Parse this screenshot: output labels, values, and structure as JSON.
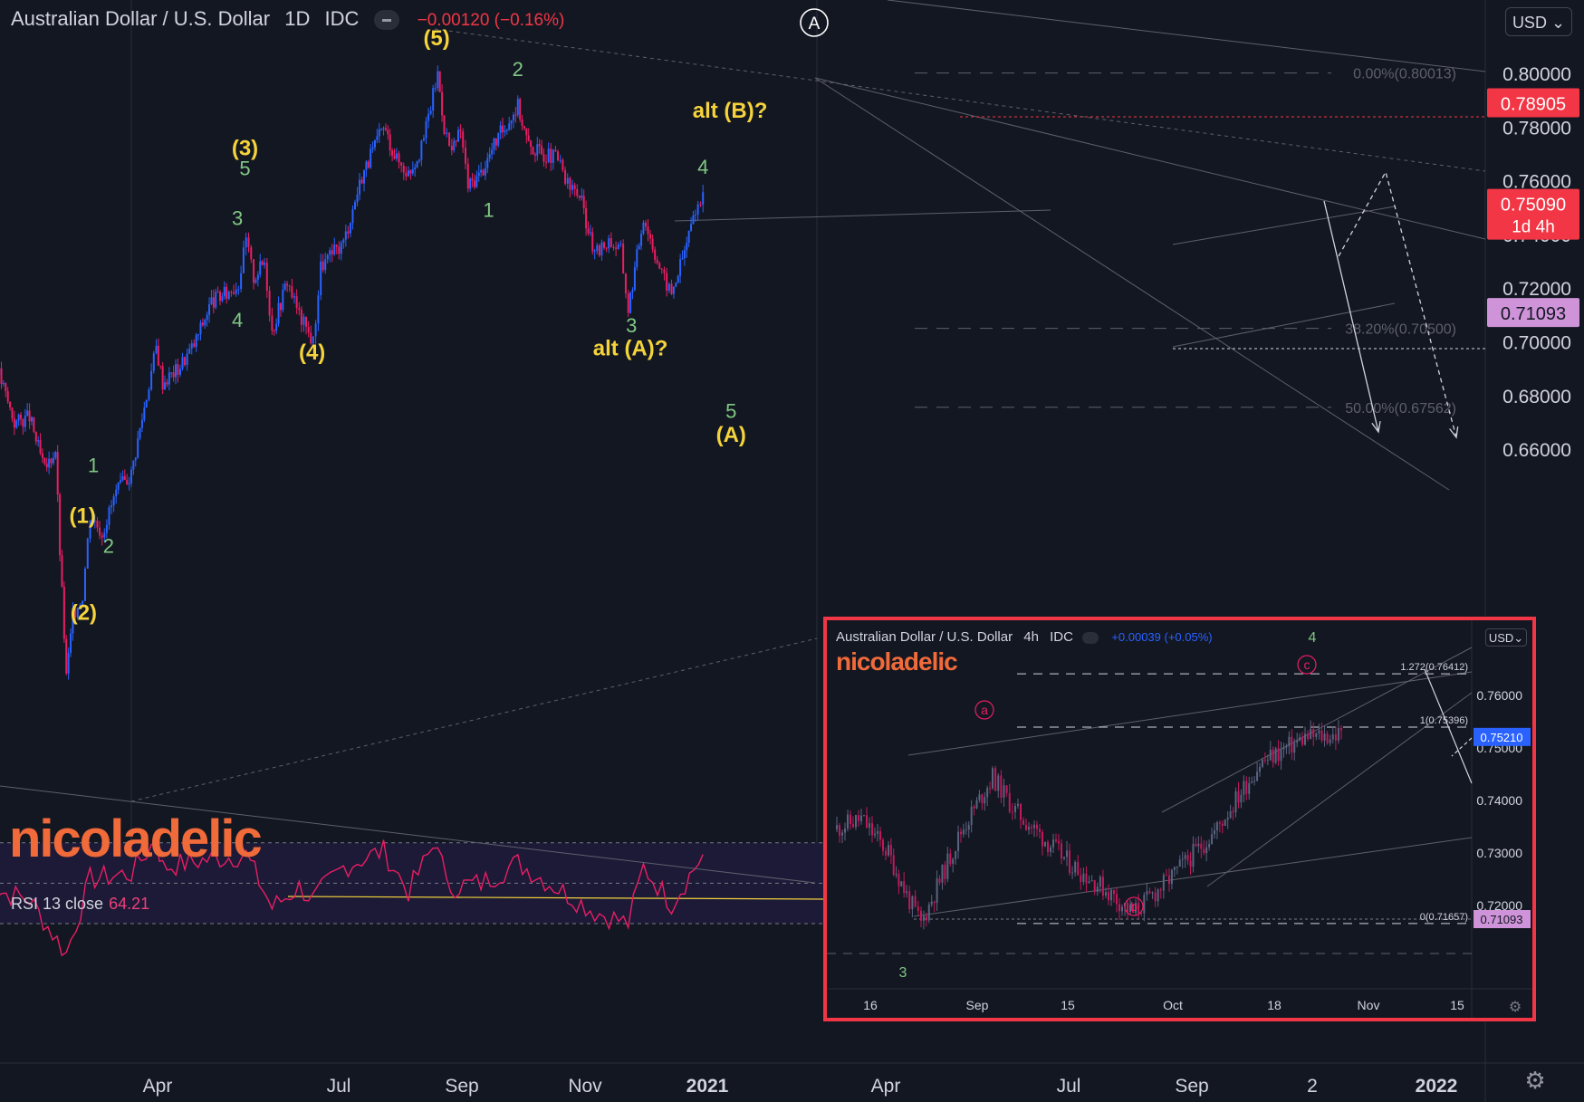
{
  "header": {
    "symbol": "Australian Dollar / U.S. Dollar",
    "interval": "1D",
    "source": "IDC",
    "change": "−0.00120 (−0.16%)",
    "currency": "USD"
  },
  "watermark": "nicoladelic",
  "rsi": {
    "label": "RSI 13 close",
    "value": "64.21"
  },
  "price_tags": [
    {
      "label": "0.78905",
      "value": 0.78905,
      "color": "#f23645"
    },
    {
      "label": "0.75090",
      "value": 0.7509,
      "sub": "1d 4h",
      "color": "#f23645"
    },
    {
      "label": "0.71093",
      "value": 0.71093,
      "color": "#ce93d8"
    }
  ],
  "fib_labels": [
    {
      "text": "0.00%(0.80013)",
      "value": 0.80013
    },
    {
      "text": "38.20%(0.70500)",
      "value": 0.705
    },
    {
      "text": "50.00%(0.67562)",
      "value": 0.67562
    }
  ],
  "wave_labels": [
    {
      "text": "(5)",
      "date": "2021-02-24",
      "price": 0.8105,
      "color": "#f5d33b"
    },
    {
      "text": "(3)",
      "date": "2020-08-31",
      "price": 0.7695,
      "color": "#f5d33b"
    },
    {
      "text": "5",
      "date": "2020-08-31",
      "price": 0.762,
      "color": "#81c784"
    },
    {
      "text": "3",
      "date": "2020-08-24",
      "price": 0.7435,
      "color": "#81c784"
    },
    {
      "text": "4",
      "date": "2020-08-24",
      "price": 0.7055,
      "color": "#81c784"
    },
    {
      "text": "(4)",
      "date": "2020-11-01",
      "price": 0.6935,
      "color": "#f5d33b"
    },
    {
      "text": "1",
      "date": "2020-04-13",
      "price": 0.6515,
      "color": "#81c784"
    },
    {
      "text": "(1)",
      "date": "2020-04-03",
      "price": 0.6325,
      "color": "#f5d33b"
    },
    {
      "text": "2",
      "date": "2020-04-27",
      "price": 0.6215,
      "color": "#81c784"
    },
    {
      "text": "(2)",
      "date": "2020-04-04",
      "price": 0.5965,
      "color": "#f5d33b"
    },
    {
      "text": "2",
      "date": "2021-05-10",
      "price": 0.799,
      "color": "#81c784"
    },
    {
      "text": "1",
      "date": "2021-04-13",
      "price": 0.7465,
      "color": "#81c784"
    },
    {
      "text": "3",
      "date": "2021-08-23",
      "price": 0.7035,
      "color": "#81c784"
    },
    {
      "text": "alt (A)?",
      "date": "2021-08-22",
      "price": 0.695,
      "color": "#f5d33b"
    },
    {
      "text": "4",
      "date": "2021-10-28",
      "price": 0.7625,
      "color": "#81c784"
    },
    {
      "text": "alt (B)?",
      "date": "2021-11-22",
      "price": 0.7835,
      "color": "#f5d33b"
    },
    {
      "text": "5",
      "date": "2021-11-23",
      "price": 0.6717,
      "color": "#81c784"
    },
    {
      "text": "(A)",
      "date": "2021-11-23",
      "price": 0.6627,
      "color": "#f5d33b"
    }
  ],
  "inset": {
    "symbol": "Australian Dollar / U.S. Dollar",
    "interval": "4h",
    "source": "IDC",
    "change": "+0.00039 (+0.05%)",
    "currency": "USD",
    "watermark": "nicoladelic",
    "y_ticks": [
      "0.76000",
      "0.75000",
      "0.74000",
      "0.73000",
      "0.72000"
    ],
    "x_ticks": [
      "16",
      "Sep",
      "15",
      "Oct",
      "18",
      "Nov",
      "15"
    ],
    "price_tags": [
      {
        "label": "0.75210",
        "color": "#2962ff"
      },
      {
        "label": "0.71093",
        "color": "#ce93d8"
      }
    ],
    "fib_labels": [
      "1.272(0.76412)",
      "1(0.75396)",
      "0(0.71657)"
    ],
    "wave_labels": [
      "a",
      "b",
      "c",
      "4",
      "3"
    ]
  },
  "chart_data": {
    "type": "line",
    "title": "Australian Dollar / U.S. Dollar, 1D, IDC",
    "ylim": [
      0.595,
      0.805
    ],
    "y_ticks": [
      0.66,
      0.68,
      0.7,
      0.72,
      0.74,
      0.76,
      0.78,
      0.8
    ],
    "x_tick_labels": [
      "Apr",
      "Jul",
      "Sep",
      "Nov",
      "2021",
      "Apr",
      "Jul",
      "Sep",
      "2",
      "2022"
    ],
    "series": [
      {
        "values": [
          [
            "2020-01-02",
            0.698
          ],
          [
            "2020-01-15",
            0.6905
          ],
          [
            "2020-01-31",
            0.67
          ],
          [
            "2020-02-14",
            0.672
          ],
          [
            "2020-02-28",
            0.652
          ],
          [
            "2020-03-09",
            0.66
          ],
          [
            "2020-03-13",
            0.622
          ],
          [
            "2020-03-19",
            0.575
          ],
          [
            "2020-03-25",
            0.598
          ],
          [
            "2020-04-03",
            0.606
          ],
          [
            "2020-04-10",
            0.636
          ],
          [
            "2020-04-21",
            0.629
          ],
          [
            "2020-05-04",
            0.644
          ],
          [
            "2020-05-18",
            0.651
          ],
          [
            "2020-06-01",
            0.68
          ],
          [
            "2020-06-10",
            0.698
          ],
          [
            "2020-06-16",
            0.685
          ],
          [
            "2020-06-30",
            0.69
          ],
          [
            "2020-07-15",
            0.699
          ],
          [
            "2020-07-31",
            0.715
          ],
          [
            "2020-08-14",
            0.718
          ],
          [
            "2020-08-25",
            0.722
          ],
          [
            "2020-09-01",
            0.738
          ],
          [
            "2020-09-08",
            0.724
          ],
          [
            "2020-09-18",
            0.73
          ],
          [
            "2020-09-25",
            0.704
          ],
          [
            "2020-10-09",
            0.723
          ],
          [
            "2020-10-20",
            0.71
          ],
          [
            "2020-11-02",
            0.7
          ],
          [
            "2020-11-09",
            0.728
          ],
          [
            "2020-11-30",
            0.737
          ],
          [
            "2020-12-17",
            0.762
          ],
          [
            "2021-01-06",
            0.78
          ],
          [
            "2021-01-18",
            0.768
          ],
          [
            "2021-01-29",
            0.763
          ],
          [
            "2021-02-10",
            0.772
          ],
          [
            "2021-02-25",
            0.8
          ],
          [
            "2021-03-03",
            0.78
          ],
          [
            "2021-03-10",
            0.77
          ],
          [
            "2021-03-18",
            0.779
          ],
          [
            "2021-03-25",
            0.758
          ],
          [
            "2021-04-06",
            0.763
          ],
          [
            "2021-04-20",
            0.775
          ],
          [
            "2021-05-10",
            0.788
          ],
          [
            "2021-05-20",
            0.773
          ],
          [
            "2021-06-03",
            0.77
          ],
          [
            "2021-06-16",
            0.768
          ],
          [
            "2021-06-25",
            0.758
          ],
          [
            "2021-07-06",
            0.755
          ],
          [
            "2021-07-20",
            0.732
          ],
          [
            "2021-08-02",
            0.738
          ],
          [
            "2021-08-13",
            0.734
          ],
          [
            "2021-08-20",
            0.712
          ],
          [
            "2021-09-03",
            0.747
          ],
          [
            "2021-09-20",
            0.725
          ],
          [
            "2021-09-29",
            0.718
          ],
          [
            "2021-10-11",
            0.734
          ],
          [
            "2021-10-21",
            0.75
          ],
          [
            "2021-10-28",
            0.753
          ]
        ]
      }
    ],
    "rsi_values": [
      [
        "2020-01-02",
        48
      ],
      [
        "2020-02-14",
        42
      ],
      [
        "2020-03-19",
        15
      ],
      [
        "2020-04-10",
        52
      ],
      [
        "2020-05-18",
        55
      ],
      [
        "2020-06-10",
        72
      ],
      [
        "2020-06-16",
        58
      ],
      [
        "2020-07-31",
        62
      ],
      [
        "2020-09-01",
        64
      ],
      [
        "2020-09-25",
        38
      ],
      [
        "2020-10-20",
        48
      ],
      [
        "2020-11-02",
        42
      ],
      [
        "2020-11-30",
        58
      ],
      [
        "2020-12-17",
        62
      ],
      [
        "2021-01-06",
        66
      ],
      [
        "2021-01-29",
        46
      ],
      [
        "2021-02-25",
        72
      ],
      [
        "2021-03-05",
        48
      ],
      [
        "2021-04-06",
        50
      ],
      [
        "2021-05-10",
        60
      ],
      [
        "2021-07-20",
        36
      ],
      [
        "2021-08-20",
        30
      ],
      [
        "2021-09-03",
        58
      ],
      [
        "2021-09-29",
        40
      ],
      [
        "2021-10-28",
        64.21
      ]
    ],
    "rsi_levels": [
      70,
      50,
      30
    ]
  }
}
